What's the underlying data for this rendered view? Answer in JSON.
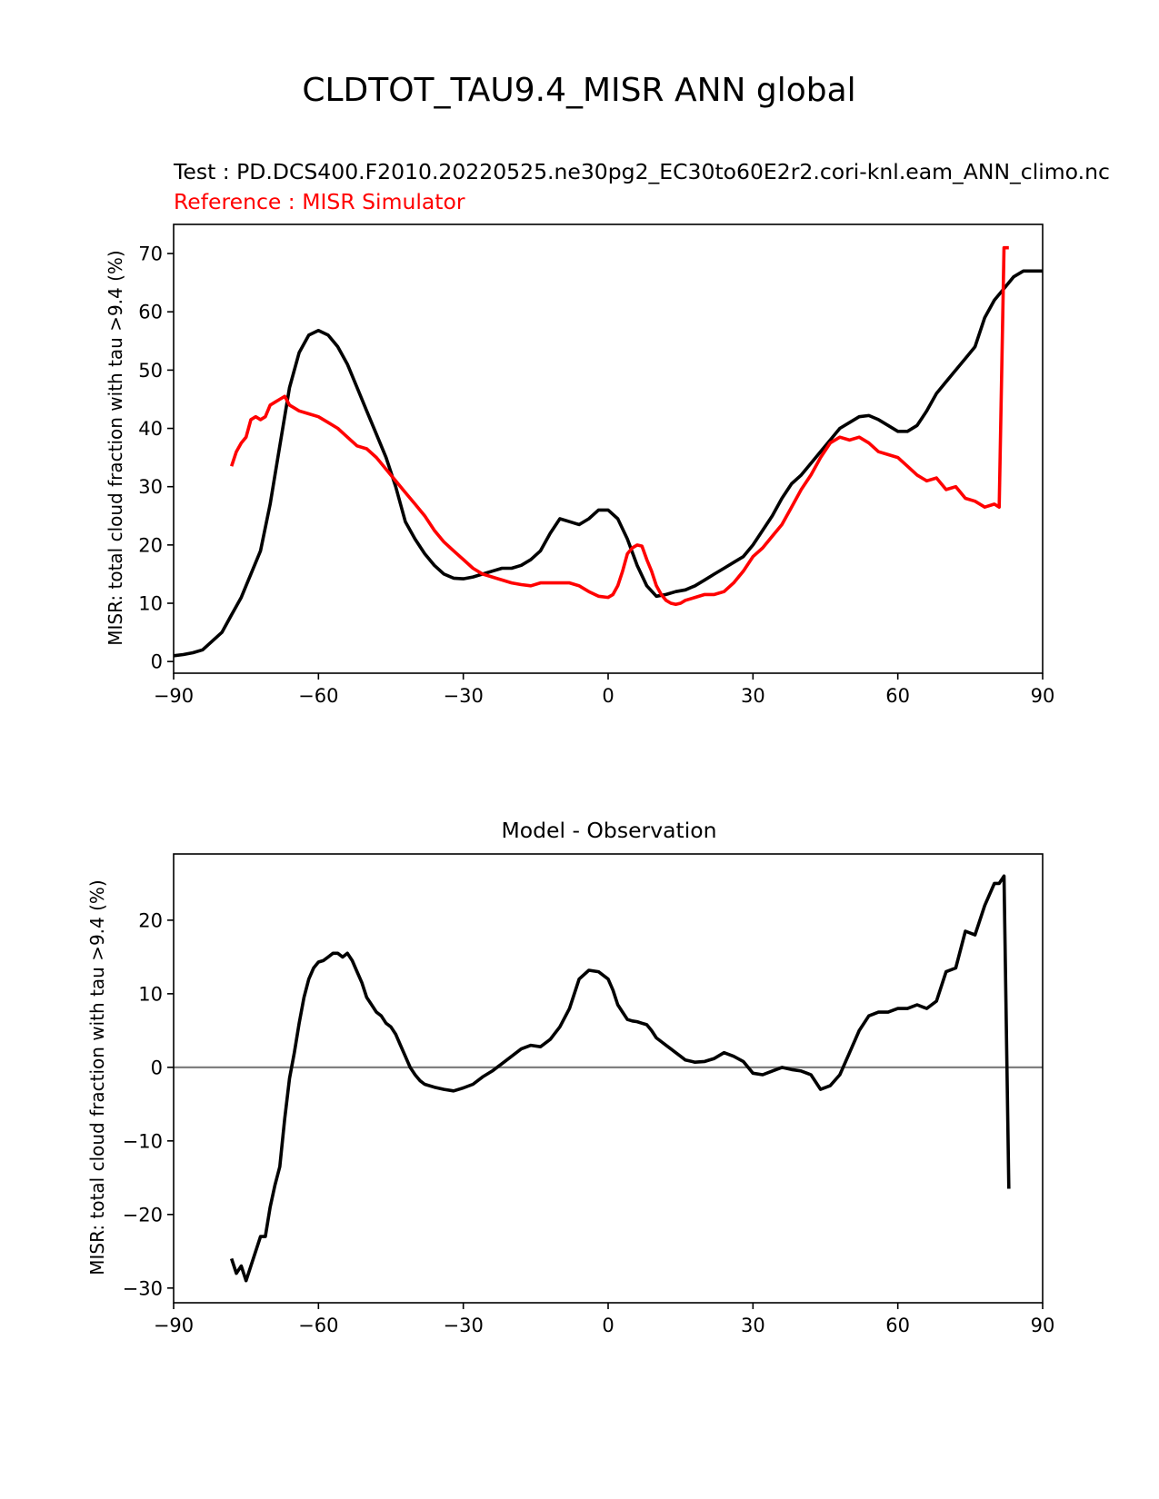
{
  "figure": {
    "suptitle": "CLDTOT_TAU9.4_MISR ANN global"
  },
  "colors": {
    "test": "#000000",
    "reference": "#ff0000",
    "zero_line": "#808080",
    "axis": "#000000"
  },
  "chart_data": [
    {
      "type": "line",
      "title_test": "Test : PD.DCS400.F2010.20220525.ne30pg2_EC30to60E2r2.cori-knl.eam_ANN_climo.nc",
      "title_reference": "Reference : MISR Simulator",
      "xlabel": "",
      "ylabel": "MISR: total cloud fraction with tau >9.4 (%)",
      "xlim": [
        -90,
        90
      ],
      "ylim": [
        -2,
        75
      ],
      "xticks": [
        -90,
        -60,
        -30,
        0,
        30,
        60,
        90
      ],
      "xtick_labels": [
        "−90",
        "−60",
        "−30",
        "0",
        "30",
        "60",
        "90"
      ],
      "yticks": [
        0,
        10,
        20,
        30,
        40,
        50,
        60,
        70
      ],
      "ytick_labels": [
        "0",
        "10",
        "20",
        "30",
        "40",
        "50",
        "60",
        "70"
      ],
      "series": [
        {
          "name": "Test",
          "color": "#000000",
          "x": [
            -90,
            -88,
            -86,
            -84,
            -82,
            -80,
            -78,
            -76,
            -74,
            -72,
            -70,
            -68,
            -66,
            -64,
            -62,
            -60,
            -58,
            -56,
            -54,
            -52,
            -50,
            -48,
            -46,
            -44,
            -42,
            -40,
            -38,
            -36,
            -34,
            -32,
            -30,
            -28,
            -26,
            -24,
            -22,
            -20,
            -18,
            -16,
            -14,
            -12,
            -10,
            -8,
            -6,
            -4,
            -2,
            0,
            2,
            4,
            6,
            8,
            10,
            12,
            14,
            16,
            18,
            20,
            22,
            24,
            26,
            28,
            30,
            32,
            34,
            36,
            38,
            40,
            42,
            44,
            46,
            48,
            50,
            52,
            54,
            56,
            58,
            60,
            62,
            64,
            66,
            68,
            70,
            72,
            74,
            76,
            78,
            80,
            82,
            84,
            86,
            88,
            90
          ],
          "values": [
            1,
            1.2,
            1.5,
            2,
            3.5,
            5,
            8,
            11,
            15,
            19,
            27,
            37,
            47,
            53,
            56,
            56.8,
            56,
            54,
            51,
            47,
            43,
            39,
            35,
            30,
            24,
            21,
            18.5,
            16.5,
            15,
            14.3,
            14.2,
            14.5,
            15,
            15.5,
            16,
            16,
            16.5,
            17.5,
            19,
            22,
            24.5,
            24,
            23.5,
            24.5,
            26,
            26,
            24.5,
            21,
            16.5,
            13,
            11.2,
            11.5,
            12,
            12.3,
            13,
            14,
            15,
            16,
            17,
            18,
            20,
            22.5,
            25,
            28,
            30.5,
            32,
            34,
            36,
            38,
            40,
            41,
            42,
            42.2,
            41.5,
            40.5,
            39.5,
            39.5,
            40.5,
            43,
            46,
            48,
            50,
            52,
            54,
            59,
            62,
            64,
            66,
            67,
            67,
            67
          ]
        },
        {
          "name": "Reference",
          "color": "#ff0000",
          "x": [
            -78,
            -77,
            -76,
            -75,
            -74,
            -73,
            -72,
            -71,
            -70,
            -69,
            -68,
            -67,
            -66,
            -65,
            -64,
            -62,
            -60,
            -58,
            -56,
            -54,
            -52,
            -50,
            -48,
            -46,
            -44,
            -42,
            -40,
            -38,
            -36,
            -34,
            -32,
            -30,
            -28,
            -26,
            -24,
            -22,
            -20,
            -18,
            -16,
            -14,
            -12,
            -10,
            -8,
            -6,
            -4,
            -2,
            0,
            1,
            2,
            3,
            4,
            5,
            6,
            7,
            8,
            9,
            10,
            11,
            12,
            13,
            14,
            15,
            16,
            18,
            20,
            22,
            24,
            26,
            28,
            30,
            32,
            34,
            36,
            38,
            40,
            42,
            44,
            46,
            48,
            50,
            52,
            54,
            56,
            58,
            60,
            62,
            64,
            66,
            68,
            70,
            72,
            74,
            76,
            78,
            80,
            81,
            82,
            83
          ],
          "values": [
            33.5,
            36,
            37.5,
            38.5,
            41.5,
            42,
            41.5,
            42,
            44,
            44.5,
            45,
            45.5,
            44,
            43.5,
            43,
            42.5,
            42,
            41,
            40,
            38.5,
            37,
            36.5,
            35,
            33,
            31,
            29,
            27,
            25,
            22.5,
            20.5,
            19,
            17.5,
            16,
            15,
            14.5,
            14,
            13.5,
            13.2,
            13,
            13.5,
            13.5,
            13.5,
            13.5,
            13,
            12,
            11.2,
            11,
            11.5,
            13,
            15.5,
            18.5,
            19.5,
            20,
            19.8,
            17.5,
            15.5,
            13,
            11.5,
            10.5,
            10,
            9.8,
            10,
            10.5,
            11,
            11.5,
            11.5,
            12,
            13.5,
            15.5,
            18,
            19.5,
            21.5,
            23.5,
            26.5,
            29.5,
            32,
            35,
            37.5,
            38.5,
            38,
            38.5,
            37.5,
            36,
            35.5,
            35,
            33.5,
            32,
            31,
            31.5,
            29.5,
            30,
            28,
            27.5,
            26.5,
            27,
            26.5,
            71,
            71
          ]
        }
      ]
    },
    {
      "type": "line",
      "title": "Model - Observation",
      "xlabel": "",
      "ylabel": "MISR: total cloud fraction with tau >9.4 (%)",
      "xlim": [
        -90,
        90
      ],
      "ylim": [
        -32,
        29
      ],
      "xticks": [
        -90,
        -60,
        -30,
        0,
        30,
        60,
        90
      ],
      "xtick_labels": [
        "−90",
        "−60",
        "−30",
        "0",
        "30",
        "60",
        "90"
      ],
      "yticks": [
        -30,
        -20,
        -10,
        0,
        10,
        20
      ],
      "ytick_labels": [
        "−30",
        "−20",
        "−10",
        "0",
        "10",
        "20"
      ],
      "zero_line": 0,
      "series": [
        {
          "name": "Model - Observation",
          "color": "#000000",
          "x": [
            -78,
            -77,
            -76,
            -75,
            -74,
            -73,
            -72,
            -71,
            -70,
            -69,
            -68,
            -67,
            -66,
            -65,
            -64,
            -63,
            -62,
            -61,
            -60,
            -59,
            -58,
            -57,
            -56,
            -55,
            -54,
            -53,
            -52,
            -51,
            -50,
            -49,
            -48,
            -47,
            -46,
            -45,
            -44,
            -43,
            -42,
            -41,
            -40,
            -39,
            -38,
            -36,
            -34,
            -32,
            -30,
            -28,
            -26,
            -24,
            -22,
            -20,
            -18,
            -16,
            -14,
            -12,
            -10,
            -8,
            -6,
            -4,
            -2,
            0,
            1,
            2,
            3,
            4,
            5,
            6,
            7,
            8,
            9,
            10,
            11,
            12,
            13,
            14,
            15,
            16,
            18,
            20,
            22,
            24,
            26,
            28,
            30,
            32,
            34,
            36,
            38,
            40,
            42,
            44,
            46,
            48,
            50,
            52,
            54,
            56,
            58,
            60,
            62,
            64,
            66,
            68,
            70,
            72,
            74,
            76,
            78,
            80,
            81,
            82,
            83
          ],
          "values": [
            -26,
            -28,
            -27,
            -29,
            -27,
            -25,
            -23,
            -23,
            -19,
            -16,
            -13.5,
            -7,
            -1.5,
            2,
            6,
            9.5,
            12,
            13.5,
            14.3,
            14.5,
            15,
            15.5,
            15.5,
            15,
            15.5,
            14.5,
            13,
            11.5,
            9.5,
            8.5,
            7.5,
            7,
            6,
            5.5,
            4.5,
            3,
            1.5,
            0,
            -1,
            -1.8,
            -2.3,
            -2.7,
            -3,
            -3.2,
            -2.8,
            -2.3,
            -1.3,
            -0.5,
            0.5,
            1.5,
            2.5,
            3,
            2.8,
            3.8,
            5.5,
            8,
            12,
            13.2,
            13,
            12,
            10.5,
            8.5,
            7.5,
            6.5,
            6.3,
            6.2,
            6,
            5.8,
            5,
            4,
            3.5,
            3,
            2.5,
            2,
            1.5,
            1,
            0.7,
            0.8,
            1.2,
            2,
            1.5,
            0.8,
            -0.8,
            -1,
            -0.5,
            0,
            -0.3,
            -0.5,
            -1,
            -3,
            -2.5,
            -1,
            2,
            5,
            7,
            7.5,
            7.5,
            8,
            8,
            8.5,
            8,
            9,
            13,
            13.5,
            18.5,
            18,
            22,
            25,
            25,
            26,
            -16.5
          ]
        }
      ]
    }
  ]
}
